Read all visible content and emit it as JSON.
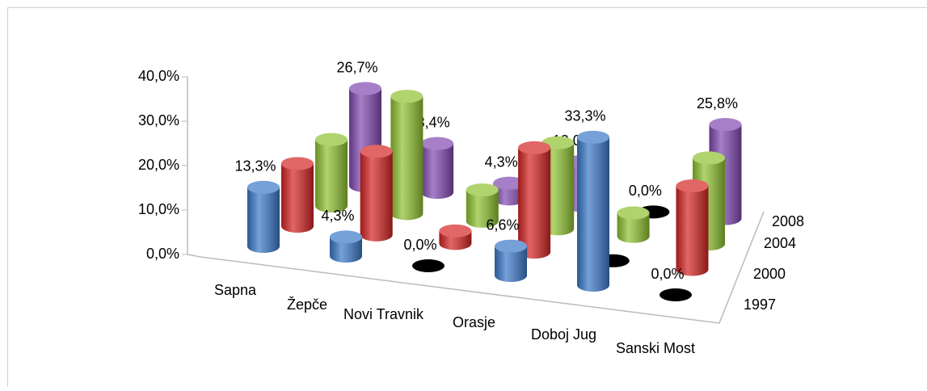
{
  "chart_data": {
    "type": "bar3d",
    "categories": [
      "Sapna",
      "Žepče",
      "Novi Travnik",
      "Orasje",
      "Doboj Jug",
      "Sanski Most"
    ],
    "series": [
      {
        "name": "1997",
        "color": "#3a78c8",
        "values": [
          13.3,
          4.3,
          0,
          6.6,
          33.3,
          0
        ],
        "value_labels": [
          "13,3%",
          "4,3%",
          "0,0%",
          "6,6%",
          "33,3%",
          "0,0%"
        ]
      },
      {
        "name": "2000",
        "color": "#d42424",
        "values": [
          15,
          20,
          3,
          25,
          0,
          20
        ]
      },
      {
        "name": "2004",
        "color": "#8fc130",
        "values": [
          17,
          30,
          8,
          22,
          6,
          22
        ]
      },
      {
        "name": "2008",
        "color": "#8048b0",
        "values": [
          26.7,
          13.4,
          4.3,
          12,
          0,
          25.8
        ],
        "value_labels": [
          "26,7%",
          "13,4%",
          "4,3%",
          "12,0%",
          "0,0%",
          "25,8%"
        ]
      }
    ],
    "ylim": [
      0,
      40
    ],
    "yticks": [
      {
        "value": 0,
        "label": "0,0%"
      },
      {
        "value": 10,
        "label": "10,0%"
      },
      {
        "value": 20,
        "label": "20,0%"
      },
      {
        "value": 30,
        "label": "30,0%"
      },
      {
        "value": 40,
        "label": "40,0%"
      }
    ]
  }
}
